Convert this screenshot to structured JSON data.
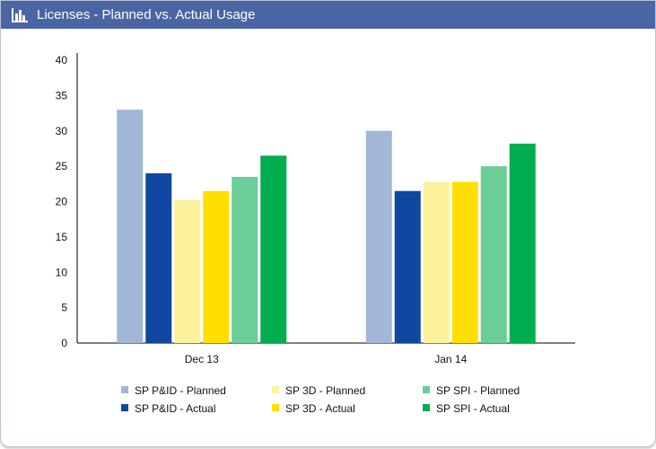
{
  "header": {
    "title": "Licenses - Planned vs. Actual Usage",
    "icon": "bar-chart-icon"
  },
  "chart_data": {
    "type": "bar",
    "categories": [
      "Dec 13",
      "Jan 14"
    ],
    "ylim": [
      0,
      40
    ],
    "yticks": [
      0,
      5,
      10,
      15,
      20,
      25,
      30,
      35,
      40
    ],
    "grid": false,
    "legend_position": "bottom",
    "series": [
      {
        "name": "SP P&ID - Planned",
        "color": "#a2b6d8",
        "values": [
          33,
          30
        ]
      },
      {
        "name": "SP P&ID - Actual",
        "color": "#0f47a1",
        "values": [
          24,
          21.5
        ]
      },
      {
        "name": "SP 3D - Planned",
        "color": "#fdf19d",
        "values": [
          20.2,
          22.8
        ]
      },
      {
        "name": "SP 3D - Actual",
        "color": "#ffdf00",
        "values": [
          21.5,
          22.8
        ]
      },
      {
        "name": "SP SPI - Planned",
        "color": "#6bcd98",
        "values": [
          23.5,
          25
        ]
      },
      {
        "name": "SP SPI - Actual",
        "color": "#00ad4f",
        "values": [
          26.5,
          28.2
        ]
      }
    ],
    "legend_order": [
      0,
      2,
      4,
      1,
      3,
      5
    ]
  }
}
